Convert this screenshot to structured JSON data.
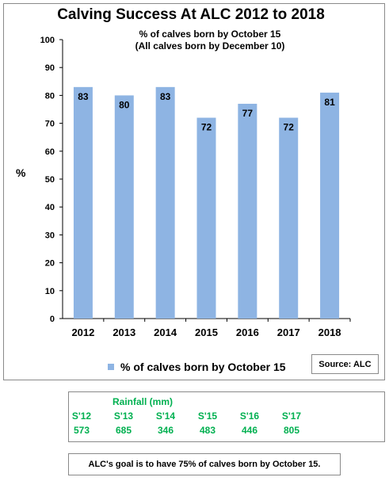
{
  "chart_data": {
    "type": "bar",
    "title": "Calving Success At ALC 2012 to 2018",
    "subtitle_lines": [
      "% of calves born by October 15",
      "(All calves born by December 10)"
    ],
    "xlabel": "",
    "ylabel": "%",
    "ylim": [
      0,
      100
    ],
    "yticks": [
      0,
      10,
      20,
      30,
      40,
      50,
      60,
      70,
      80,
      90,
      100
    ],
    "categories": [
      "2012",
      "2013",
      "2014",
      "2015",
      "2016",
      "2017",
      "2018"
    ],
    "series": [
      {
        "name": "% of calves born by October 15",
        "values": [
          83,
          80,
          83,
          72,
          77,
          72,
          81
        ],
        "color": "#8eb4e3"
      }
    ],
    "grid": false,
    "legend": "bottom"
  },
  "source_label": "Source: ALC",
  "rainfall": {
    "title": "Rainfall (mm)",
    "seasons": [
      "S'12",
      "S'13",
      "S'14",
      "S'15",
      "S'16",
      "S'17"
    ],
    "values": [
      "573",
      "685",
      "346",
      "483",
      "446",
      "805"
    ],
    "color": "#00b050"
  },
  "goal_text": "ALC's goal is to have 75% of calves born by October 15."
}
